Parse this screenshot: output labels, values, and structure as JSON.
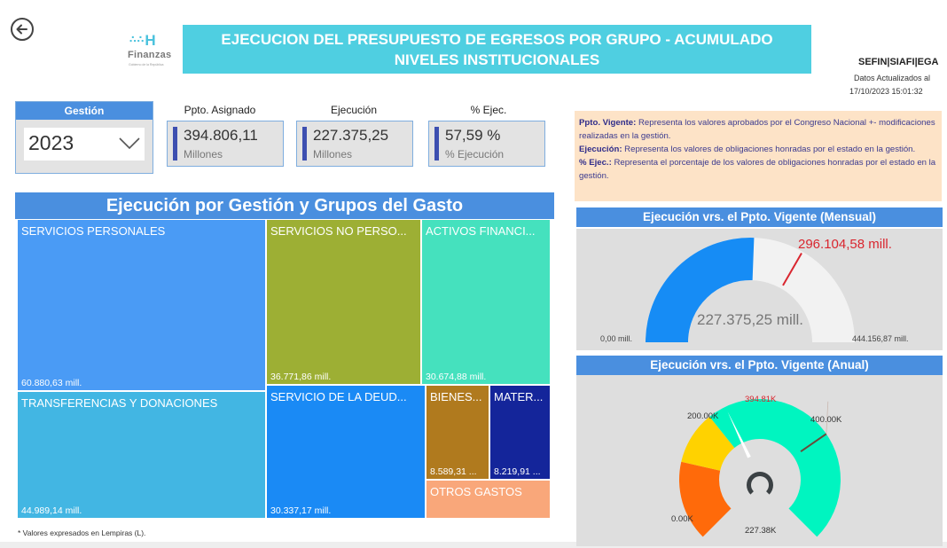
{
  "header": {
    "back_icon": "arrow-left-circle-icon",
    "logo": {
      "mark": "H",
      "brand": "Finanzas",
      "subtitle": "Gobierno de la República"
    },
    "title_line1": "EJECUCION DEL PRESUPUESTO DE EGRESOS POR GRUPO  - ACUMULADO",
    "title_line2": "NIVELES INSTITUCIONALES",
    "source": "SEFIN|SIAFI|EGA",
    "updated_label": "Datos Actualizados al",
    "updated_value": "17/10/2023 15:01:32"
  },
  "slicer": {
    "label": "Gestión",
    "selected": "2023",
    "icon": "chevron-down-icon"
  },
  "kpis": [
    {
      "label": "Ppto. Asignado",
      "value": "394.806,11",
      "unit": "Millones"
    },
    {
      "label": "Ejecución",
      "value": "227.375,25",
      "unit": "Millones"
    },
    {
      "label": "% Ejec.",
      "value": "57,59 %",
      "unit": "% Ejecución"
    }
  ],
  "notes": [
    {
      "term": "Ppto. Vigente:",
      "text": "  Representa los valores aprobados por el Congreso Nacional +- modificaciones realizadas en la gestión."
    },
    {
      "term": "Ejecución:",
      "text": "  Representa los valores de obligaciones honradas por el estado en la gestión."
    },
    {
      "term": "% Ejec.:",
      "text": "  Representa el porcentaje  de los valores de obligaciones honradas por el estado en la gestión."
    }
  ],
  "treemap": {
    "title": "Ejecución por Gestión y Grupos del Gasto",
    "footnote": "* Valores expresados en Lempiras (L).",
    "tiles": [
      {
        "name": "SERVICIOS PERSONALES",
        "value": "60.880,63 mill.",
        "color": "#4a9bf5"
      },
      {
        "name": "TRANSFERENCIAS Y DONACIONES",
        "value": "44.989,14 mill.",
        "color": "#42b6e3"
      },
      {
        "name": "SERVICIOS NO PERSO...",
        "value": "36.771,86 mill.",
        "color": "#9daf34"
      },
      {
        "name": "SERVICIO DE LA DEUD...",
        "value": "30.337,17 mill.",
        "color": "#1a8af5"
      },
      {
        "name": "ACTIVOS FINANCI...",
        "value": "30.674,88 mill.",
        "color": "#45e1be"
      },
      {
        "name": "BIENES...",
        "value": "8.589,31 ...",
        "color": "#b07a1e"
      },
      {
        "name": "MATER...",
        "value": "8.219,91 ...",
        "color": "#14259a"
      },
      {
        "name": "OTROS GASTOS",
        "value": "",
        "color": "#f9a77a"
      }
    ]
  },
  "gauge_monthly": {
    "title": "Ejecución vrs. el Ppto. Vigente (Mensual)",
    "min_label": "0,00 mill.",
    "max_label": "444.156,87 mill.",
    "value_label": "227.375,25 mill.",
    "target_label": "296.104,58 mill.",
    "min": 0,
    "max": 444156.87,
    "value": 227375.25,
    "target": 296104.58,
    "fill_color": "#168cf5",
    "track_color": "#f2f2f2",
    "target_color": "#d9262f"
  },
  "gauge_annual": {
    "title": "Ejecución vrs. el Ppto. Vigente (Anual)",
    "min_label": "0.00K",
    "tick_200_label": "200.00K",
    "tick_400_label": "400.00K",
    "target_label": "394.81K",
    "value_label": "227.38K",
    "min": 0,
    "max": 560,
    "value": 227.38,
    "target": 394.81,
    "bands": [
      {
        "from": 0,
        "to": 120,
        "color": "#ff6a0a"
      },
      {
        "from": 120,
        "to": 200,
        "color": "#ffd200"
      },
      {
        "from": 200,
        "to": 560,
        "color": "#00f5c0"
      }
    ],
    "needle_color": "#ffffff",
    "target_color": "#6b4a3a",
    "target_text_color": "#d9262f"
  }
}
